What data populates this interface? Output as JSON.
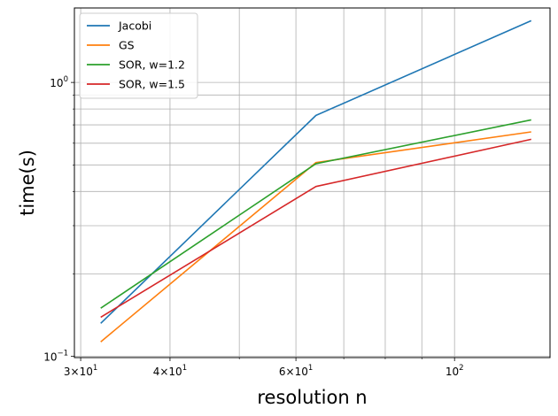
{
  "chart_data": {
    "type": "line",
    "xlabel": "resolution n",
    "ylabel": "time(s)",
    "xscale": "log",
    "yscale": "log",
    "xlim": [
      29.4,
      136
    ],
    "ylim": [
      0.099,
      1.87
    ],
    "grid": "both-major-and-minor",
    "legend_placement": "top-left",
    "x": [
      32,
      64,
      128
    ],
    "series": [
      {
        "name": "Jacobi",
        "color": "#1f77b4",
        "values": [
          0.132,
          0.758,
          1.68
        ]
      },
      {
        "name": "GS",
        "color": "#ff7f0e",
        "values": [
          0.113,
          0.51,
          0.66
        ]
      },
      {
        "name": "SOR, w=1.2",
        "color": "#2ca02c",
        "values": [
          0.15,
          0.505,
          0.73
        ]
      },
      {
        "name": "SOR, w=1.5",
        "color": "#d62728",
        "values": [
          0.139,
          0.417,
          0.62
        ]
      }
    ],
    "x_ticks": [
      {
        "value": 30,
        "base": "3×10",
        "exp": "1"
      },
      {
        "value": 40,
        "base": "4×10",
        "exp": "1"
      },
      {
        "value": 60,
        "base": "6×10",
        "exp": "1"
      },
      {
        "value": 100,
        "base": "10",
        "exp": "2"
      }
    ],
    "x_minor_grid": [
      50,
      70,
      80,
      90
    ],
    "y_ticks": [
      {
        "value": 0.1,
        "base": "10",
        "exp": "−1"
      },
      {
        "value": 1,
        "base": "10",
        "exp": "0"
      }
    ],
    "y_minor_grid": [
      0.2,
      0.3,
      0.4,
      0.5,
      0.6,
      0.7,
      0.8,
      0.9
    ]
  }
}
